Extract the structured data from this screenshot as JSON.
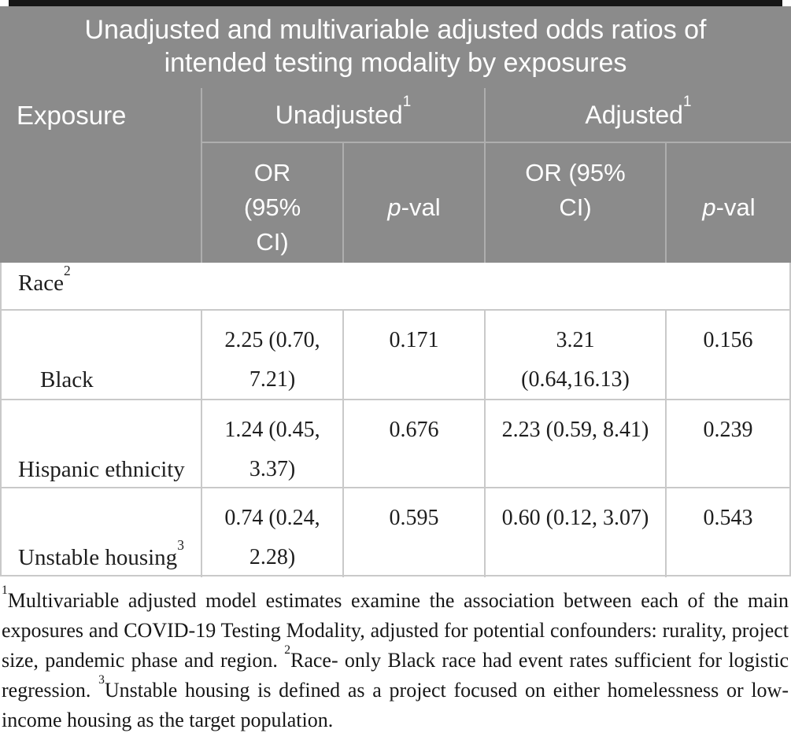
{
  "title": "Unadjusted and multivariable adjusted odds ratios of\nintended testing modality by exposures",
  "columns": {
    "exposure": "Exposure",
    "unadjusted_group": {
      "label": "Unadjusted",
      "sup": "1"
    },
    "adjusted_group": {
      "label": "Adjusted",
      "sup": "1"
    },
    "or_ci_unadjusted": "OR\n(95%\nCI)",
    "or_ci_adjusted": "OR (95%\nCI)",
    "pval": {
      "italic": "p",
      "rest": "-val"
    }
  },
  "group_row": {
    "label": "Race",
    "sup": "2"
  },
  "rows": [
    {
      "label": "Black",
      "label_sup": "",
      "unadjusted_or": "2.25 (0.70,\n7.21)",
      "unadjusted_p": "0.171",
      "adjusted_or": "3.21\n(0.64,16.13)",
      "adjusted_p": "0.156"
    },
    {
      "label": "Hispanic ethnicity",
      "label_sup": "",
      "unadjusted_or": "1.24 (0.45,\n3.37)",
      "unadjusted_p": "0.676",
      "adjusted_or": "2.23 (0.59, 8.41)",
      "adjusted_p": "0.239"
    },
    {
      "label": "Unstable housing",
      "label_sup": "3",
      "unadjusted_or": "0.74 (0.24,\n2.28)",
      "unadjusted_p": "0.595",
      "adjusted_or": "0.60 (0.12, 3.07)",
      "adjusted_p": "0.543"
    }
  ],
  "footnotes": [
    {
      "sup": "1",
      "text": "Multivariable adjusted model estimates examine the association between each of the main exposures and COVID-19 Testing Modality, adjusted for potential confounders: rurality, project size, pandemic phase and region. "
    },
    {
      "sup": "2",
      "text": "Race- only Black race had event rates sufficient for logistic regression. "
    },
    {
      "sup": "3",
      "text": "Unstable housing is defined as a project focused on either homelessness or low-income housing as the target population."
    }
  ],
  "colors": {
    "header_bg": "#8b8b8b",
    "header_divider": "#aeaeae",
    "body_border": "#c9c9c9",
    "header_text": "#ffffff",
    "body_text": "#1e1e1e",
    "top_rule": "#161616"
  }
}
